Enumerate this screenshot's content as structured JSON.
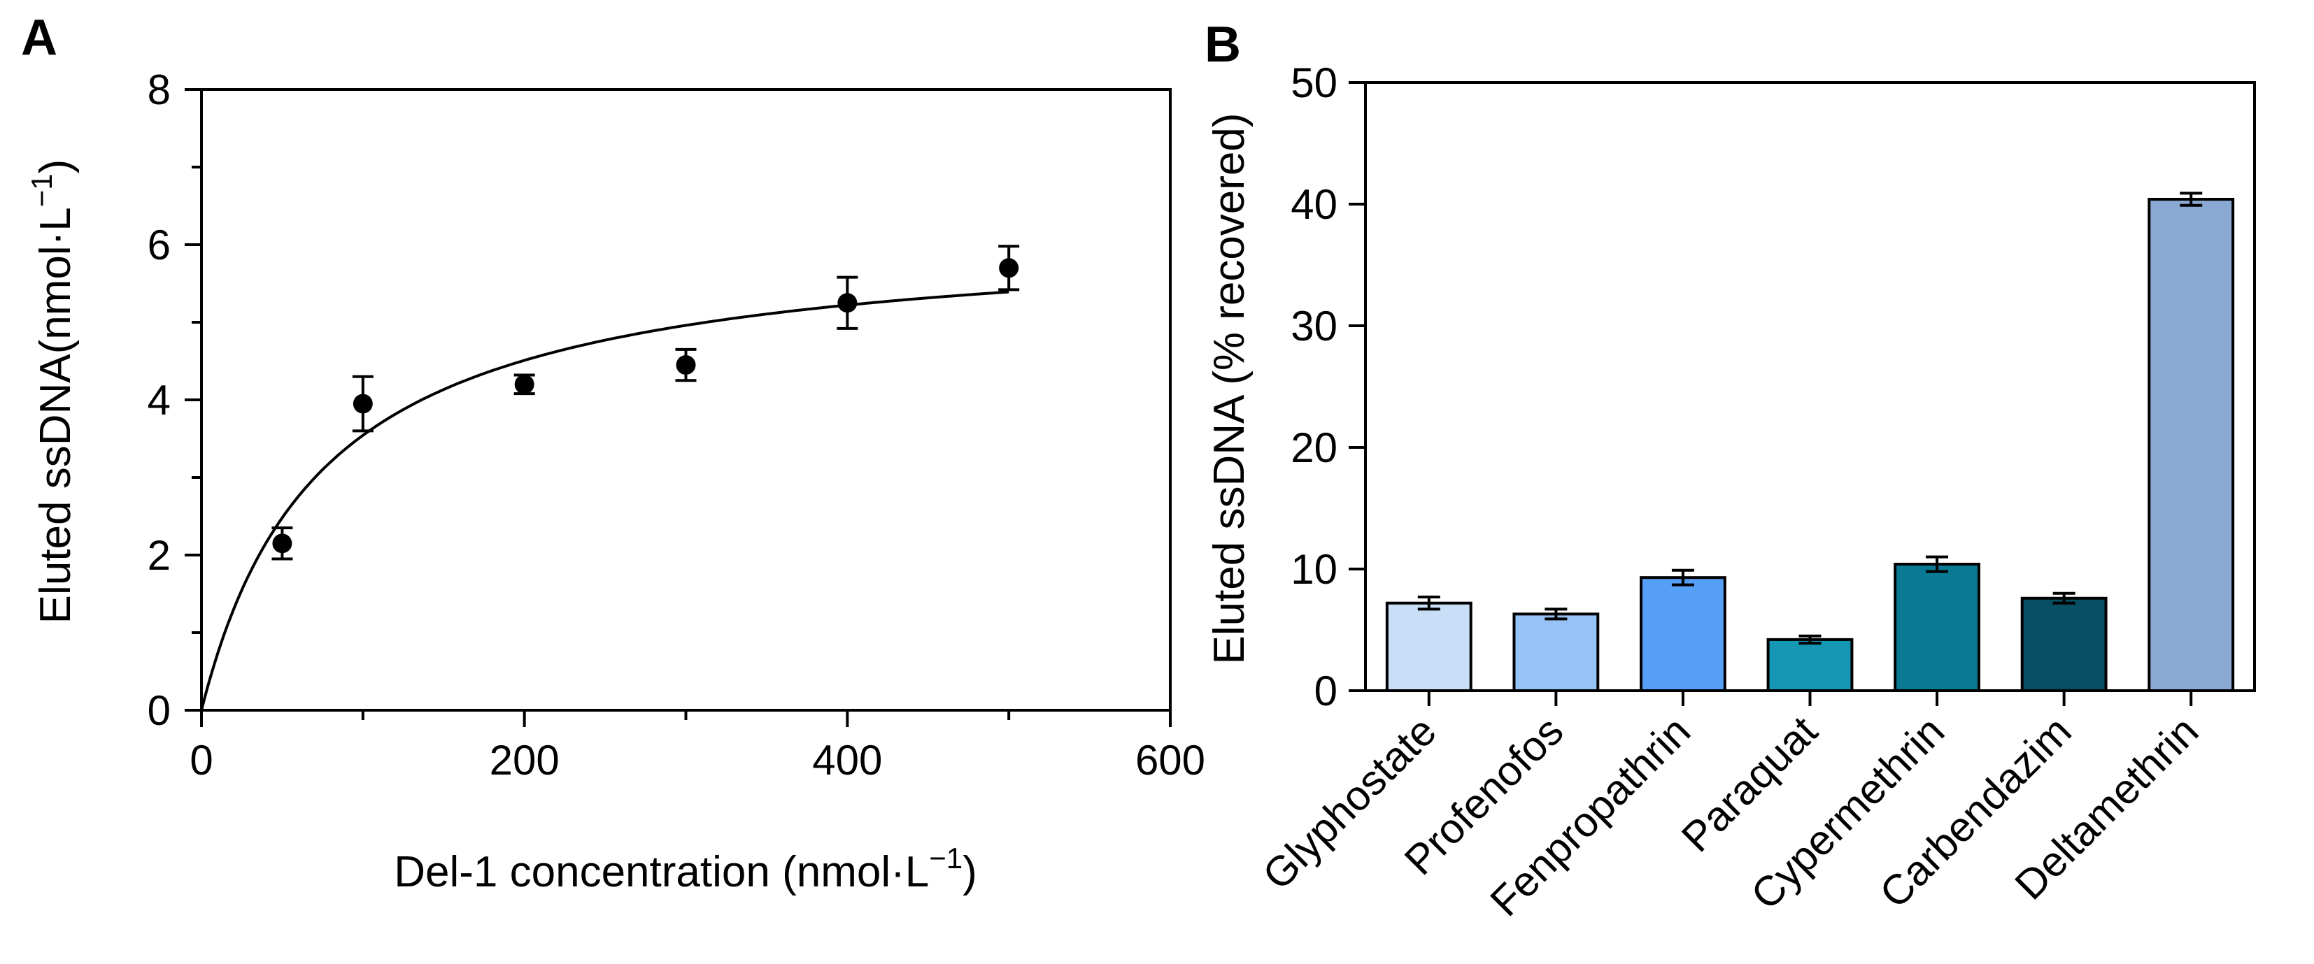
{
  "panels": {
    "a": {
      "letter": "A"
    },
    "b": {
      "letter": "B"
    }
  },
  "chart_data": [
    {
      "type": "scatter",
      "panel": "A",
      "xlabel_main": "Del-1 concentration (nmol·L",
      "xlabel_sup": "−1",
      "xlabel_end": ")",
      "ylabel_main": "Eluted ssDNA(nmol·L",
      "ylabel_sup": "−1",
      "ylabel_end": ")",
      "xlim": [
        0,
        600
      ],
      "ylim": [
        0,
        8
      ],
      "xticks": [
        "0",
        "200",
        "400",
        "600"
      ],
      "yticks": [
        "0",
        "2",
        "4",
        "6",
        "8"
      ],
      "grid": false,
      "fit_curve": "saturation (one-site binding) curve from 0 to 500",
      "fit": {
        "bmax": 6.2,
        "kd": 75
      },
      "points": [
        {
          "x": 50,
          "y": 2.15,
          "err": 0.2
        },
        {
          "x": 100,
          "y": 3.95,
          "err": 0.35
        },
        {
          "x": 200,
          "y": 4.2,
          "err": 0.12
        },
        {
          "x": 300,
          "y": 4.45,
          "err": 0.2
        },
        {
          "x": 400,
          "y": 5.25,
          "err": 0.33
        },
        {
          "x": 500,
          "y": 5.7,
          "err": 0.28
        }
      ]
    },
    {
      "type": "bar",
      "panel": "B",
      "ylabel": "Eluted ssDNA (% recovered)",
      "ylim": [
        0,
        50
      ],
      "yticks": [
        "0",
        "10",
        "20",
        "30",
        "40",
        "50"
      ],
      "grid": false,
      "categories": [
        "Glyphostate",
        "Profenofos",
        "Fenpropathrin",
        "Paraquat",
        "Cypermethrin",
        "Carbendazim",
        "Deltamethrin"
      ],
      "values": [
        7.2,
        6.3,
        9.3,
        4.2,
        10.4,
        7.6,
        40.4
      ],
      "errors": [
        0.5,
        0.4,
        0.6,
        0.3,
        0.6,
        0.4,
        0.5
      ],
      "colors": [
        "#c9dff7",
        "#97c2f5",
        "#55a0f6",
        "#1697b3",
        "#0a7a94",
        "#074f64",
        "#8aa9d2"
      ]
    }
  ]
}
